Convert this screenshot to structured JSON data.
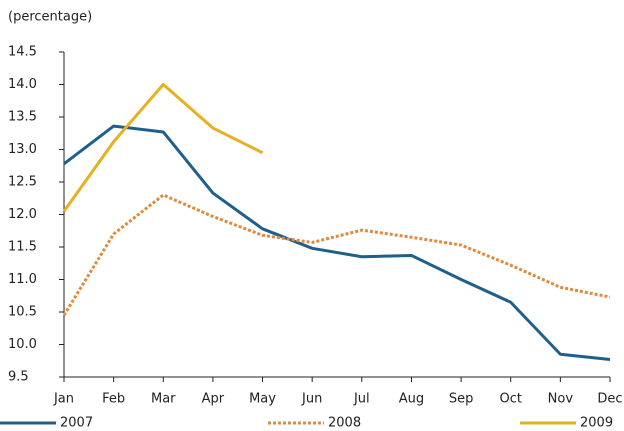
{
  "chart_data": {
    "type": "line",
    "y_label": "(percentage)",
    "categories": [
      "Jan",
      "Feb",
      "Mar",
      "Apr",
      "May",
      "Jun",
      "Jul",
      "Aug",
      "Sep",
      "Oct",
      "Nov",
      "Dec"
    ],
    "series": [
      {
        "name": "2007",
        "color": "#1f5f8b",
        "linestyle": "solid",
        "values": [
          12.78,
          13.36,
          13.27,
          12.33,
          11.78,
          11.48,
          11.35,
          11.37,
          11.0,
          10.65,
          9.85,
          9.77
        ]
      },
      {
        "name": "2008",
        "color": "#e08a3c",
        "linestyle": "dotted",
        "values": [
          10.45,
          11.7,
          12.3,
          11.97,
          11.68,
          11.57,
          11.76,
          11.65,
          11.53,
          11.22,
          10.88,
          10.73
        ]
      },
      {
        "name": "2009",
        "color": "#e6b01e",
        "linestyle": "solid",
        "values": [
          12.05,
          13.12,
          14.0,
          13.33,
          12.95,
          null,
          null,
          null,
          null,
          null,
          null,
          null
        ]
      }
    ],
    "ylim": [
      9.5,
      14.5
    ],
    "yticks": [
      9.5,
      {
        "value": 10,
        "label": "10.0"
      },
      10.5,
      {
        "value": 11,
        "label": "11.0"
      },
      11.5,
      {
        "value": 12,
        "label": "12.0"
      },
      12.5,
      {
        "value": 13,
        "label": "13.0"
      },
      13.5,
      {
        "value": 14,
        "label": "14.0"
      },
      14.5
    ],
    "grid": false,
    "legend": "bottom"
  }
}
